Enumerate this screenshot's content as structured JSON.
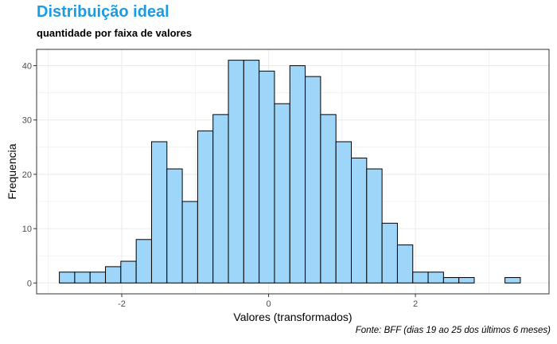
{
  "chart_data": {
    "type": "bar",
    "subtype": "histogram",
    "title": "Distribuição ideal",
    "subtitle": "quantidade por faixa de valores",
    "caption": "Fonte: BFF (dias 19 ao 25 dos últimos 6 meses)",
    "xlabel": "Valores (transformados)",
    "ylabel": "Frequencia",
    "bin_width": 0.2093,
    "x_start": -2.85,
    "values": [
      2,
      2,
      2,
      3,
      4,
      8,
      26,
      21,
      15,
      28,
      31,
      41,
      41,
      39,
      33,
      40,
      38,
      31,
      26,
      23,
      21,
      11,
      7,
      2,
      2,
      1,
      1,
      0,
      0,
      1
    ],
    "xlim": [
      -3.16,
      3.82
    ],
    "ylim": [
      -2,
      43
    ],
    "xticks": [
      -2,
      0,
      2
    ],
    "xtick_labels": [
      "-2",
      "0",
      "2"
    ],
    "yticks": [
      0,
      10,
      20,
      30,
      40
    ],
    "ytick_labels": [
      "0",
      "10",
      "20",
      "30",
      "40"
    ],
    "grid": true,
    "bar_fill": "#9dd6f9",
    "bar_stroke": "#000000",
    "title_color": "#1a9be6",
    "grid_color": "#ebebeb"
  }
}
